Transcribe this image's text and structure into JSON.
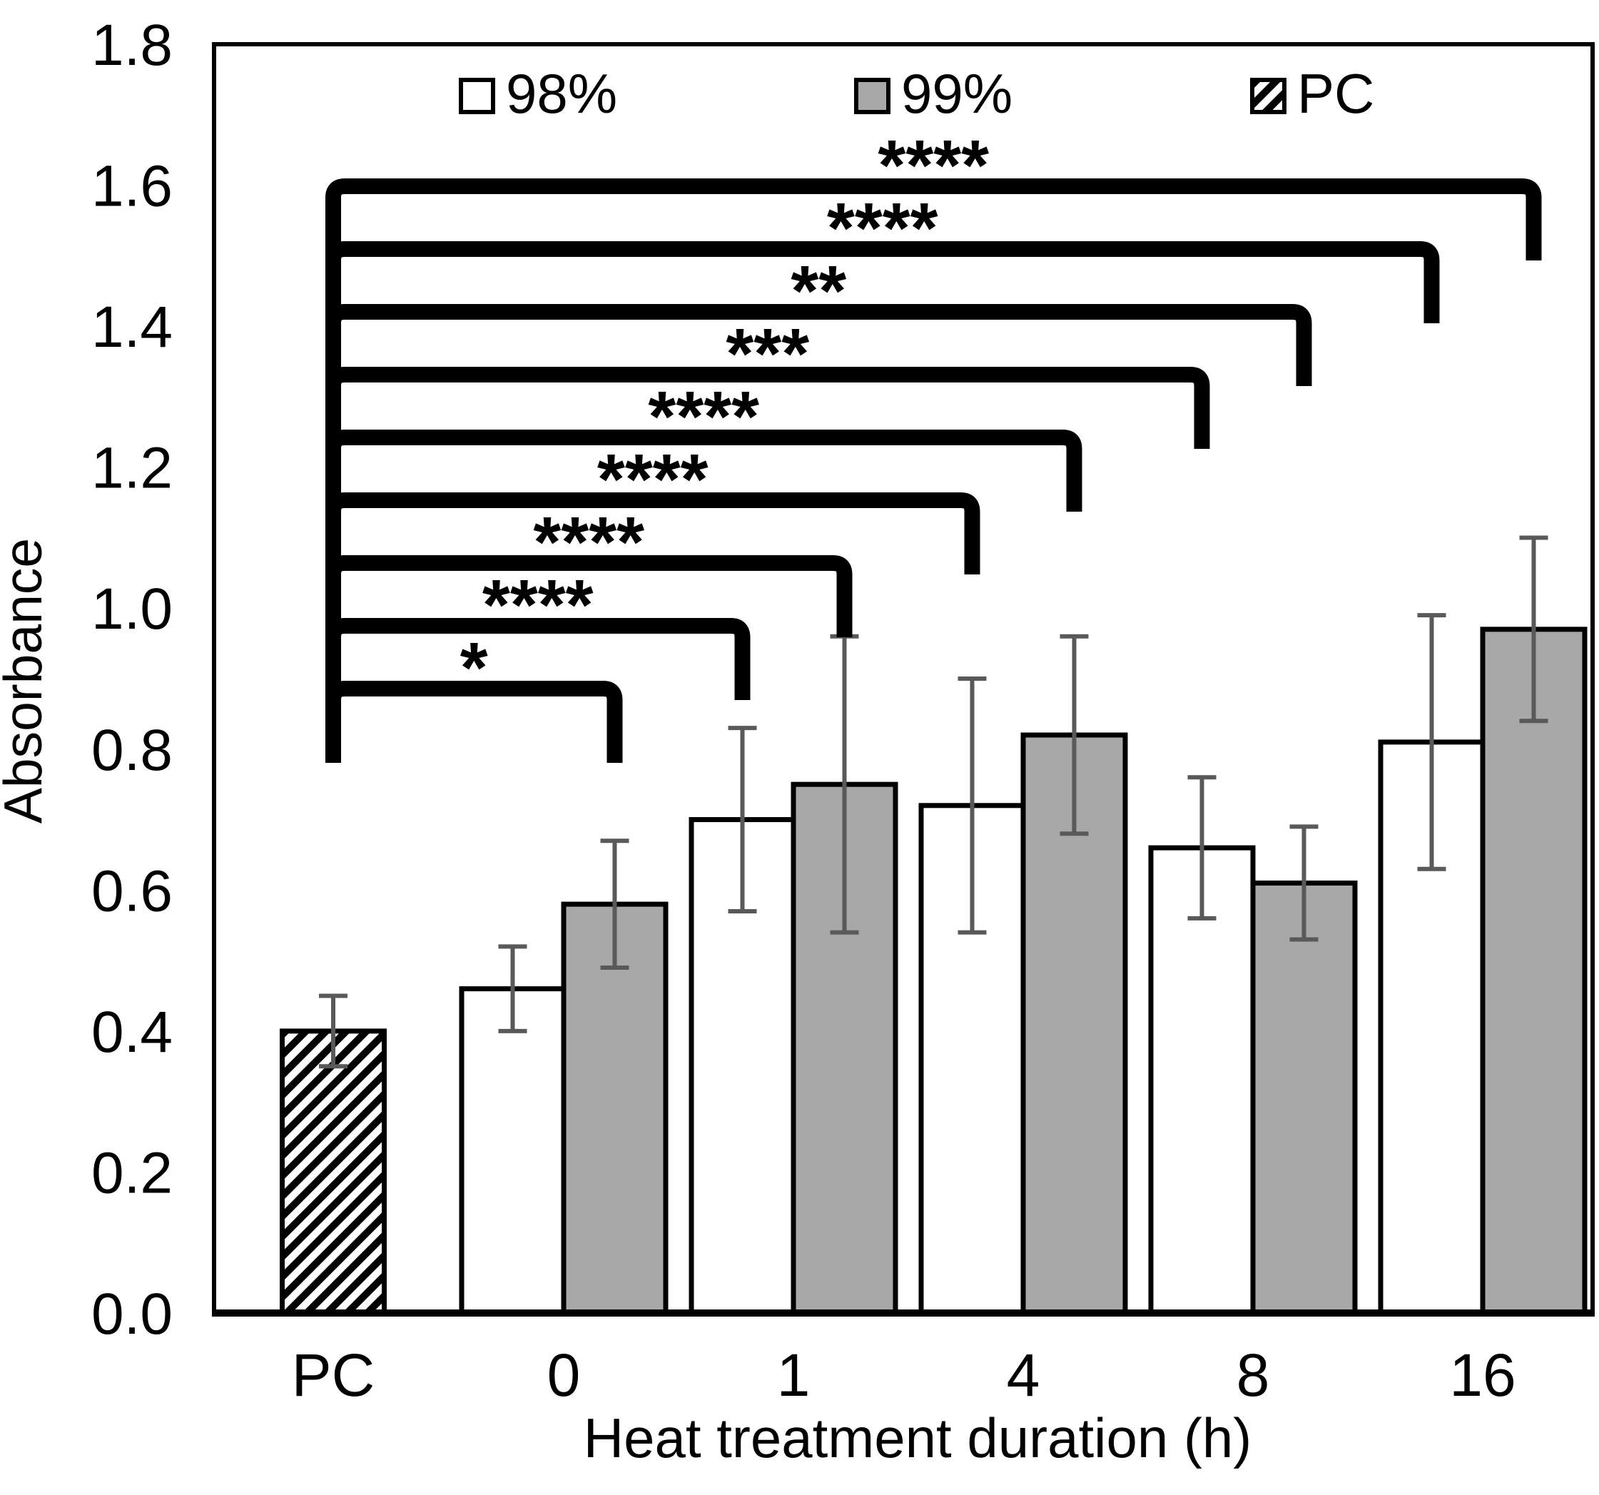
{
  "chart_data": {
    "type": "bar",
    "title": "",
    "ylabel": "Absorbance",
    "xlabel": "Heat treatment duration (h)",
    "ylim": [
      0.0,
      1.8
    ],
    "ytick_step": 0.2,
    "yticks": [
      "0.0",
      "0.2",
      "0.4",
      "0.6",
      "0.8",
      "1.0",
      "1.2",
      "1.4",
      "1.6",
      "1.8"
    ],
    "categories": [
      "PC",
      "0",
      "1",
      "4",
      "8",
      "16"
    ],
    "series": [
      {
        "name": "98%",
        "swatch": "white",
        "values": [
          null,
          0.46,
          0.7,
          0.72,
          0.66,
          0.81
        ],
        "errors": [
          null,
          0.06,
          0.13,
          0.18,
          0.1,
          0.18
        ]
      },
      {
        "name": "99%",
        "swatch": "gray",
        "values": [
          null,
          0.58,
          0.75,
          0.82,
          0.61,
          0.97
        ],
        "errors": [
          null,
          0.09,
          0.21,
          0.14,
          0.08,
          0.13
        ]
      },
      {
        "name": "PC",
        "swatch": "hatch",
        "values": [
          0.4,
          null,
          null,
          null,
          null,
          null
        ],
        "errors": [
          0.05,
          null,
          null,
          null,
          null,
          null
        ]
      }
    ],
    "legend": [
      {
        "label": "98%",
        "swatch": "white"
      },
      {
        "label": "99%",
        "swatch": "gray"
      },
      {
        "label": "PC",
        "swatch": "hatch"
      }
    ],
    "legend_position": "top-inside",
    "grid": false,
    "significance_brackets": [
      {
        "from_category": "PC",
        "to_category": "16",
        "to_series": "99%",
        "stars": "****"
      },
      {
        "from_category": "PC",
        "to_category": "16",
        "to_series": "98%",
        "stars": "****"
      },
      {
        "from_category": "PC",
        "to_category": "8",
        "to_series": "99%",
        "stars": "**"
      },
      {
        "from_category": "PC",
        "to_category": "8",
        "to_series": "98%",
        "stars": "***"
      },
      {
        "from_category": "PC",
        "to_category": "4",
        "to_series": "99%",
        "stars": "****"
      },
      {
        "from_category": "PC",
        "to_category": "4",
        "to_series": "98%",
        "stars": "****"
      },
      {
        "from_category": "PC",
        "to_category": "1",
        "to_series": "99%",
        "stars": "****"
      },
      {
        "from_category": "PC",
        "to_category": "1",
        "to_series": "98%",
        "stars": "****"
      },
      {
        "from_category": "PC",
        "to_category": "0",
        "to_series": "99%",
        "stars": "*"
      }
    ],
    "colors": {
      "bar_gray": "#a8a8a8",
      "bar_white": "#ffffff",
      "outline": "#000000",
      "error_bar": "#595959",
      "bracket": "#000000",
      "text": "#000000",
      "background": "#ffffff"
    }
  }
}
